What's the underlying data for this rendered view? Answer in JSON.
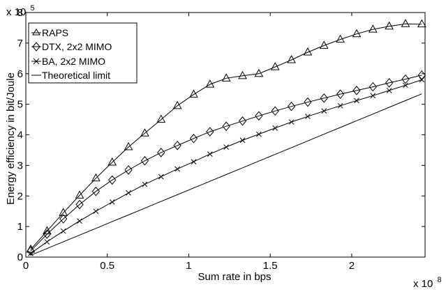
{
  "chart_data": {
    "type": "line",
    "xlabel": "Sum rate in bps",
    "ylabel": "Energy efficiency in bit/Joule",
    "x_multiplier_label": "x 10",
    "x_multiplier_exp": "8",
    "y_multiplier_label": "x 10",
    "y_multiplier_exp": "5",
    "xlim": [
      0,
      2.45
    ],
    "ylim": [
      0,
      8
    ],
    "x_tick_values": [
      0,
      0.5,
      1,
      1.5,
      2
    ],
    "x_tick_labels": [
      "0",
      "0.5",
      "1",
      "1.5",
      "2"
    ],
    "y_tick_values": [
      0,
      1,
      2,
      3,
      4,
      5,
      6,
      7,
      8
    ],
    "y_tick_labels": [
      "0",
      "1",
      "2",
      "3",
      "4",
      "5",
      "6",
      "7",
      "8"
    ],
    "grid": false,
    "legend_position": "top-left",
    "x": [
      0.03,
      0.13,
      0.23,
      0.33,
      0.43,
      0.53,
      0.63,
      0.73,
      0.83,
      0.93,
      1.03,
      1.13,
      1.23,
      1.33,
      1.43,
      1.53,
      1.63,
      1.73,
      1.83,
      1.93,
      2.03,
      2.13,
      2.23,
      2.33,
      2.43
    ],
    "series": [
      {
        "name": "RAPS",
        "marker": "triangle",
        "values": [
          0.25,
          0.85,
          1.45,
          2.02,
          2.58,
          3.1,
          3.6,
          4.05,
          4.5,
          4.95,
          5.32,
          5.65,
          5.85,
          5.93,
          6.0,
          6.22,
          6.45,
          6.7,
          6.92,
          7.12,
          7.3,
          7.45,
          7.55,
          7.63,
          7.62
        ]
      },
      {
        "name": "DTX, 2x2 MIMO",
        "marker": "diamond",
        "values": [
          0.2,
          0.75,
          1.25,
          1.72,
          2.15,
          2.52,
          2.85,
          3.15,
          3.42,
          3.65,
          3.88,
          4.1,
          4.28,
          4.45,
          4.62,
          4.78,
          4.93,
          5.07,
          5.2,
          5.33,
          5.45,
          5.57,
          5.7,
          5.82,
          5.95
        ]
      },
      {
        "name": "BA, 2x2 MIMO",
        "marker": "x",
        "values": [
          0.12,
          0.5,
          0.85,
          1.18,
          1.5,
          1.8,
          2.1,
          2.38,
          2.63,
          2.88,
          3.12,
          3.37,
          3.6,
          3.82,
          4.02,
          4.22,
          4.42,
          4.6,
          4.78,
          4.95,
          5.12,
          5.28,
          5.45,
          5.62,
          5.8
        ]
      },
      {
        "name": "Theoretical limit",
        "marker": "none",
        "values": [
          0.06,
          0.28,
          0.5,
          0.72,
          0.94,
          1.16,
          1.38,
          1.6,
          1.82,
          2.04,
          2.26,
          2.48,
          2.7,
          2.92,
          3.14,
          3.36,
          3.58,
          3.8,
          4.02,
          4.24,
          4.46,
          4.68,
          4.9,
          5.12,
          5.34
        ]
      }
    ]
  }
}
